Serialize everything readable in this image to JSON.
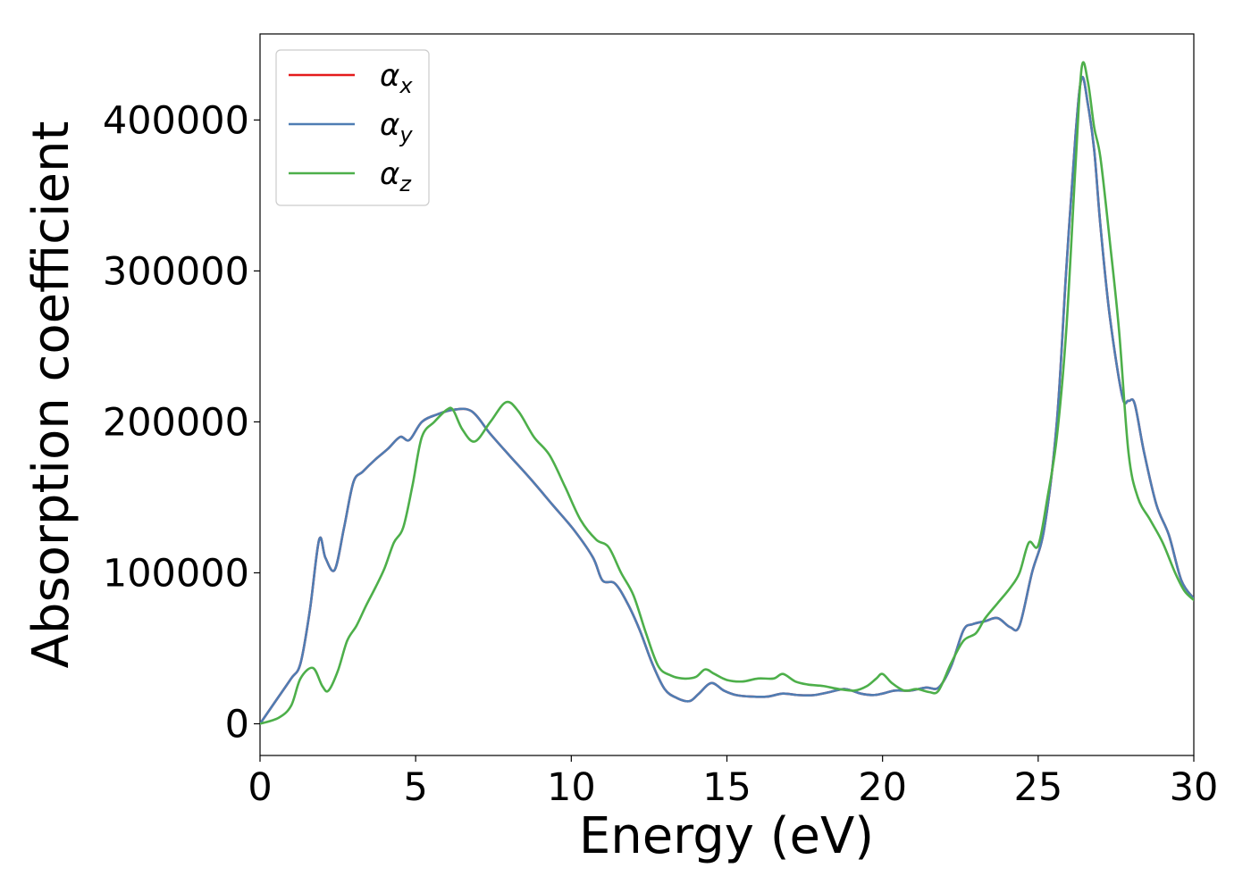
{
  "chart_data": {
    "type": "line",
    "xlabel": "Energy (eV)",
    "ylabel": "Absorption coefficient",
    "xlim": [
      0,
      30
    ],
    "ylim": [
      -21000,
      457000
    ],
    "xticks": [
      0,
      5,
      10,
      15,
      20,
      25,
      30
    ],
    "yticks": [
      0,
      100000,
      200000,
      300000,
      400000
    ],
    "grid": false,
    "legend": "top-left",
    "series": [
      {
        "name": "α",
        "subscript": "x",
        "color": "#e41a1c",
        "x": [
          0,
          0.5,
          1.0,
          1.3,
          1.6,
          1.9,
          2.1,
          2.4,
          2.7,
          3.0,
          3.3,
          3.7,
          4.1,
          4.5,
          4.8,
          5.2,
          5.7,
          6.2,
          6.8,
          7.4,
          8.0,
          8.7,
          9.4,
          10.1,
          10.7,
          11.0,
          11.4,
          11.8,
          12.2,
          12.6,
          13.0,
          13.4,
          13.8,
          14.1,
          14.5,
          14.9,
          15.3,
          15.8,
          16.3,
          16.8,
          17.3,
          17.8,
          18.3,
          18.8,
          19.3,
          19.7,
          20.0,
          20.4,
          20.9,
          21.4,
          21.8,
          22.2,
          22.6,
          22.9,
          23.3,
          23.7,
          24.1,
          24.4,
          24.8,
          25.2,
          25.6,
          25.9,
          26.2,
          26.4,
          26.6,
          26.8,
          27.0,
          27.3,
          27.7,
          27.9,
          28.1,
          28.4,
          28.8,
          29.2,
          29.6,
          30.0
        ],
        "y": [
          0,
          15000,
          30000,
          40000,
          75000,
          122000,
          110000,
          102000,
          130000,
          160000,
          167000,
          175000,
          182000,
          190000,
          188000,
          200000,
          205000,
          208000,
          207000,
          192000,
          178000,
          162000,
          145000,
          128000,
          110000,
          95000,
          93000,
          80000,
          62000,
          40000,
          23000,
          17000,
          15000,
          20000,
          27000,
          22000,
          19000,
          18000,
          18000,
          20000,
          19000,
          19000,
          21000,
          23000,
          20000,
          19000,
          20000,
          22000,
          22000,
          24000,
          24000,
          38000,
          62000,
          66000,
          68000,
          70000,
          64000,
          65000,
          100000,
          130000,
          200000,
          300000,
          390000,
          428000,
          410000,
          380000,
          330000,
          270000,
          217000,
          214000,
          212000,
          180000,
          145000,
          125000,
          95000,
          83000
        ]
      },
      {
        "name": "α",
        "subscript": "y",
        "color": "#4f7db3",
        "x": [
          0,
          0.5,
          1.0,
          1.3,
          1.6,
          1.9,
          2.1,
          2.4,
          2.7,
          3.0,
          3.3,
          3.7,
          4.1,
          4.5,
          4.8,
          5.2,
          5.7,
          6.2,
          6.8,
          7.4,
          8.0,
          8.7,
          9.4,
          10.1,
          10.7,
          11.0,
          11.4,
          11.8,
          12.2,
          12.6,
          13.0,
          13.4,
          13.8,
          14.1,
          14.5,
          14.9,
          15.3,
          15.8,
          16.3,
          16.8,
          17.3,
          17.8,
          18.3,
          18.8,
          19.3,
          19.7,
          20.0,
          20.4,
          20.9,
          21.4,
          21.8,
          22.2,
          22.6,
          22.9,
          23.3,
          23.7,
          24.1,
          24.4,
          24.8,
          25.2,
          25.6,
          25.9,
          26.2,
          26.4,
          26.6,
          26.8,
          27.0,
          27.3,
          27.7,
          27.9,
          28.1,
          28.4,
          28.8,
          29.2,
          29.6,
          30.0
        ],
        "y": [
          0,
          15000,
          30000,
          40000,
          75000,
          122000,
          110000,
          102000,
          130000,
          160000,
          167000,
          175000,
          182000,
          190000,
          188000,
          200000,
          205000,
          208000,
          207000,
          192000,
          178000,
          162000,
          145000,
          128000,
          110000,
          95000,
          93000,
          80000,
          62000,
          40000,
          23000,
          17000,
          15000,
          20000,
          27000,
          22000,
          19000,
          18000,
          18000,
          20000,
          19000,
          19000,
          21000,
          23000,
          20000,
          19000,
          20000,
          22000,
          22000,
          24000,
          24000,
          38000,
          62000,
          66000,
          68000,
          70000,
          64000,
          65000,
          100000,
          130000,
          200000,
          300000,
          390000,
          428000,
          410000,
          380000,
          330000,
          270000,
          217000,
          214000,
          212000,
          180000,
          145000,
          125000,
          95000,
          83000
        ]
      },
      {
        "name": "α",
        "subscript": "z",
        "color": "#4daf4a",
        "x": [
          0,
          0.6,
          1.0,
          1.3,
          1.7,
          2.0,
          2.2,
          2.5,
          2.8,
          3.1,
          3.4,
          3.7,
          4.0,
          4.3,
          4.6,
          4.9,
          5.2,
          5.6,
          6.0,
          6.2,
          6.5,
          6.9,
          7.4,
          7.9,
          8.3,
          8.8,
          9.3,
          9.8,
          10.3,
          10.8,
          11.2,
          11.6,
          12.0,
          12.4,
          12.8,
          13.2,
          13.6,
          14.0,
          14.3,
          14.6,
          15.0,
          15.5,
          16.0,
          16.5,
          16.8,
          17.2,
          17.6,
          18.1,
          18.6,
          19.1,
          19.5,
          19.8,
          20.0,
          20.3,
          20.7,
          21.1,
          21.5,
          21.8,
          22.2,
          22.6,
          23.0,
          23.3,
          23.7,
          24.1,
          24.4,
          24.7,
          25.0,
          25.3,
          25.6,
          25.9,
          26.2,
          26.4,
          26.6,
          26.8,
          27.0,
          27.3,
          27.6,
          27.9,
          28.2,
          28.6,
          29.0,
          29.4,
          29.7,
          30.0
        ],
        "y": [
          0,
          4000,
          12000,
          30000,
          37000,
          25000,
          22000,
          35000,
          55000,
          65000,
          78000,
          90000,
          103000,
          120000,
          130000,
          158000,
          190000,
          200000,
          208000,
          208000,
          195000,
          187000,
          200000,
          213000,
          207000,
          190000,
          178000,
          157000,
          135000,
          122000,
          117000,
          100000,
          85000,
          60000,
          38000,
          32000,
          30000,
          31000,
          36000,
          33000,
          29000,
          28000,
          30000,
          30000,
          33000,
          28000,
          26000,
          25000,
          23000,
          22000,
          25000,
          30000,
          33000,
          27000,
          22000,
          23000,
          21000,
          22000,
          40000,
          55000,
          60000,
          70000,
          80000,
          90000,
          100000,
          120000,
          118000,
          150000,
          190000,
          260000,
          370000,
          435000,
          425000,
          395000,
          375000,
          320000,
          260000,
          180000,
          150000,
          135000,
          120000,
          100000,
          88000,
          82000
        ]
      }
    ]
  }
}
